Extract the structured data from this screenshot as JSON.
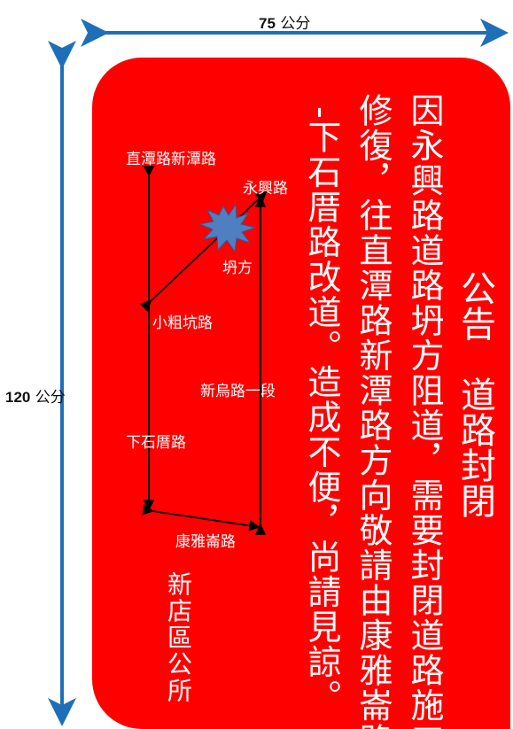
{
  "dimensions": {
    "width": {
      "value": "75",
      "unit": "公分"
    },
    "height": {
      "value": "120",
      "unit": "公分"
    }
  },
  "notice": {
    "title": "公告　道路封閉",
    "lines": [
      "因永興路道路坍方阻道，需要封閉道路施工",
      "修復，往直潭路新潭路方向敬請由康雅崙路",
      "-下石厝路改道。造成不便，尚請見諒。"
    ],
    "issuer": "新店區公所"
  },
  "map": {
    "labels": {
      "zhitan_xintan": "直潭路新潭路",
      "yongxing": "永興路",
      "landslide": "坍方",
      "xiaocukeng": "小粗坑路",
      "xinwu_sec1": "新烏路一段",
      "xiashicuo": "下石厝路",
      "kangyalun": "康雅崙路"
    }
  },
  "colors": {
    "sign_background": "#ff0000",
    "text": "#ffffff",
    "dimension_arrows": "#1f6fb8",
    "landslide_marker": "#4f7fc0"
  }
}
